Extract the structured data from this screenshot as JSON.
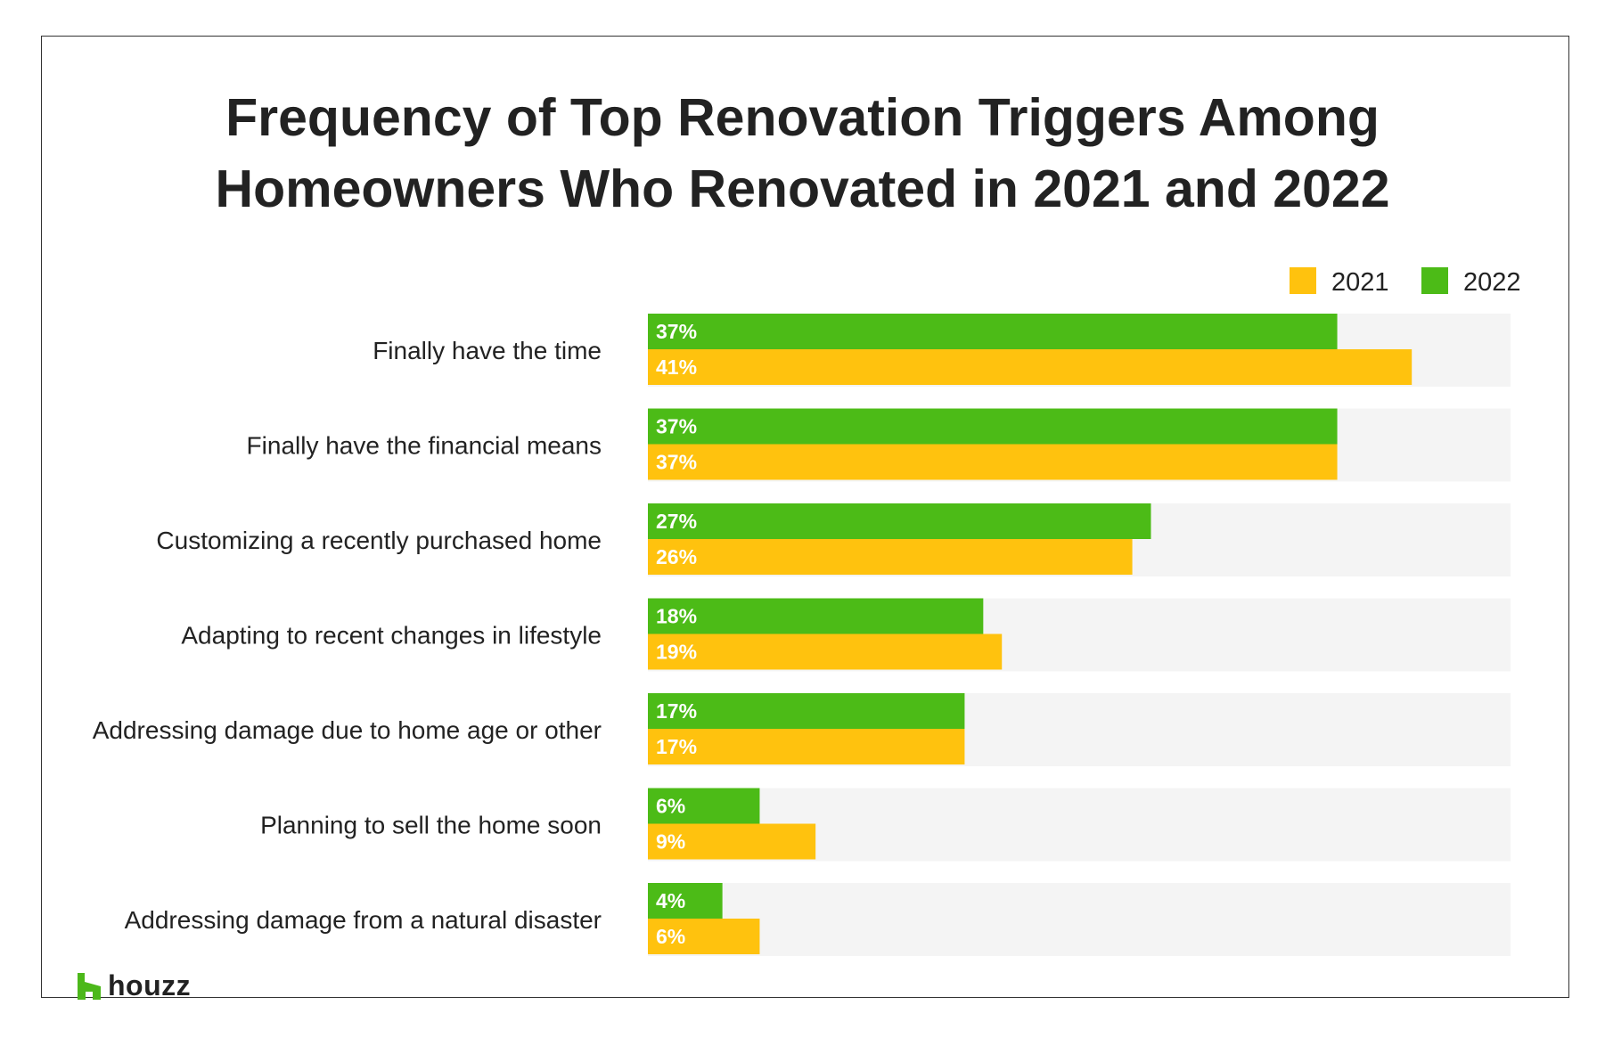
{
  "brand": {
    "name": "houzz",
    "color": "#4cb81a"
  },
  "chart_data": {
    "type": "bar",
    "orientation": "horizontal",
    "title_lines": [
      "Frequency of Top Renovation Triggers Among",
      "Homeowners Who Renovated in 2021 and 2022"
    ],
    "categories": [
      "Finally have the time",
      "Finally have the financial means",
      "Customizing a recently purchased home",
      "Adapting to recent changes in lifestyle",
      "Addressing damage due to home age or other",
      "Planning to sell the home soon",
      "Addressing damage from a natural disaster"
    ],
    "series": [
      {
        "name": "2022",
        "color": "#4cbb17",
        "values": [
          37,
          37,
          27,
          18,
          17,
          6,
          4
        ],
        "labels": [
          "37%",
          "37%",
          "27%",
          "18%",
          "17%",
          "6%",
          "4%"
        ]
      },
      {
        "name": "2021",
        "color": "#ffc20e",
        "values": [
          41,
          37,
          26,
          19,
          17,
          9,
          6
        ],
        "labels": [
          "41%",
          "37%",
          "26%",
          "19%",
          "17%",
          "9%",
          "6%"
        ]
      }
    ],
    "legend_order": [
      "2021",
      "2022"
    ],
    "legend_position": "top-right",
    "xlim": [
      0,
      46.3
    ],
    "track_color": "#f4f4f4",
    "grid": false
  }
}
